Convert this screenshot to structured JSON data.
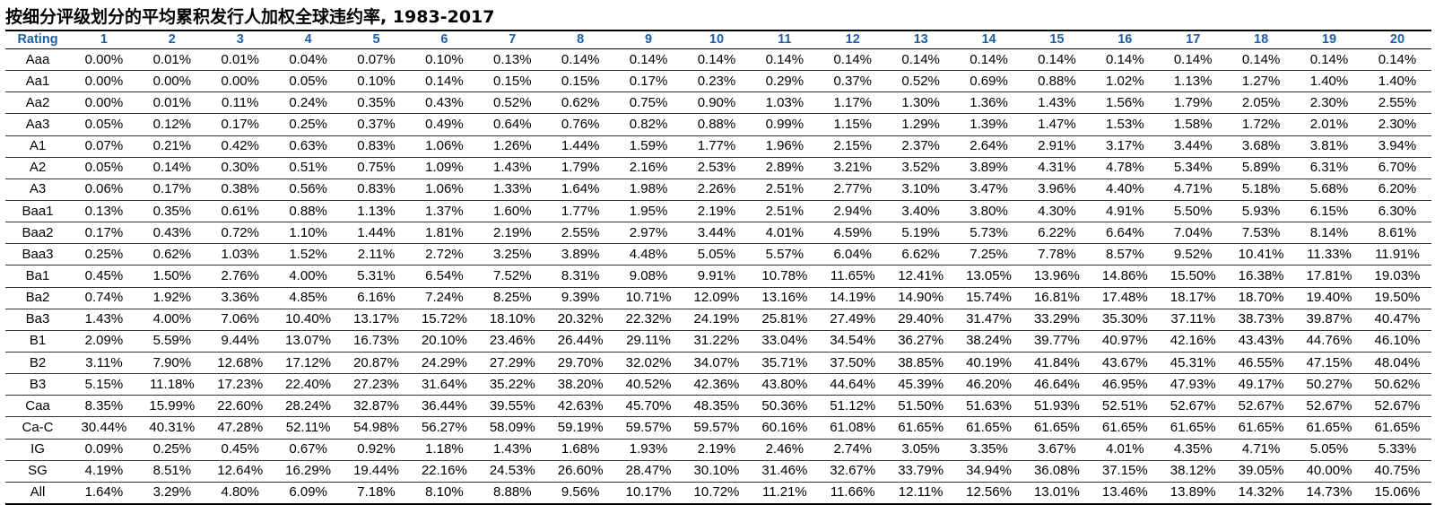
{
  "chart_data": {
    "type": "table",
    "title": "按细分评级划分的平均累积发行人加权全球违约率, 1983-2017",
    "columns": [
      "Rating",
      "1",
      "2",
      "3",
      "4",
      "5",
      "6",
      "7",
      "8",
      "9",
      "10",
      "11",
      "12",
      "13",
      "14",
      "15",
      "16",
      "17",
      "18",
      "19",
      "20"
    ],
    "rows": [
      {
        "rating": "Aaa",
        "values": [
          "0.00%",
          "0.01%",
          "0.01%",
          "0.04%",
          "0.07%",
          "0.10%",
          "0.13%",
          "0.14%",
          "0.14%",
          "0.14%",
          "0.14%",
          "0.14%",
          "0.14%",
          "0.14%",
          "0.14%",
          "0.14%",
          "0.14%",
          "0.14%",
          "0.14%",
          "0.14%"
        ]
      },
      {
        "rating": "Aa1",
        "values": [
          "0.00%",
          "0.00%",
          "0.00%",
          "0.05%",
          "0.10%",
          "0.14%",
          "0.15%",
          "0.15%",
          "0.17%",
          "0.23%",
          "0.29%",
          "0.37%",
          "0.52%",
          "0.69%",
          "0.88%",
          "1.02%",
          "1.13%",
          "1.27%",
          "1.40%",
          "1.40%"
        ]
      },
      {
        "rating": "Aa2",
        "values": [
          "0.00%",
          "0.01%",
          "0.11%",
          "0.24%",
          "0.35%",
          "0.43%",
          "0.52%",
          "0.62%",
          "0.75%",
          "0.90%",
          "1.03%",
          "1.17%",
          "1.30%",
          "1.36%",
          "1.43%",
          "1.56%",
          "1.79%",
          "2.05%",
          "2.30%",
          "2.55%"
        ]
      },
      {
        "rating": "Aa3",
        "values": [
          "0.05%",
          "0.12%",
          "0.17%",
          "0.25%",
          "0.37%",
          "0.49%",
          "0.64%",
          "0.76%",
          "0.82%",
          "0.88%",
          "0.99%",
          "1.15%",
          "1.29%",
          "1.39%",
          "1.47%",
          "1.53%",
          "1.58%",
          "1.72%",
          "2.01%",
          "2.30%"
        ]
      },
      {
        "rating": "A1",
        "values": [
          "0.07%",
          "0.21%",
          "0.42%",
          "0.63%",
          "0.83%",
          "1.06%",
          "1.26%",
          "1.44%",
          "1.59%",
          "1.77%",
          "1.96%",
          "2.15%",
          "2.37%",
          "2.64%",
          "2.91%",
          "3.17%",
          "3.44%",
          "3.68%",
          "3.81%",
          "3.94%"
        ]
      },
      {
        "rating": "A2",
        "values": [
          "0.05%",
          "0.14%",
          "0.30%",
          "0.51%",
          "0.75%",
          "1.09%",
          "1.43%",
          "1.79%",
          "2.16%",
          "2.53%",
          "2.89%",
          "3.21%",
          "3.52%",
          "3.89%",
          "4.31%",
          "4.78%",
          "5.34%",
          "5.89%",
          "6.31%",
          "6.70%"
        ]
      },
      {
        "rating": "A3",
        "values": [
          "0.06%",
          "0.17%",
          "0.38%",
          "0.56%",
          "0.83%",
          "1.06%",
          "1.33%",
          "1.64%",
          "1.98%",
          "2.26%",
          "2.51%",
          "2.77%",
          "3.10%",
          "3.47%",
          "3.96%",
          "4.40%",
          "4.71%",
          "5.18%",
          "5.68%",
          "6.20%"
        ]
      },
      {
        "rating": "Baa1",
        "values": [
          "0.13%",
          "0.35%",
          "0.61%",
          "0.88%",
          "1.13%",
          "1.37%",
          "1.60%",
          "1.77%",
          "1.95%",
          "2.19%",
          "2.51%",
          "2.94%",
          "3.40%",
          "3.80%",
          "4.30%",
          "4.91%",
          "5.50%",
          "5.93%",
          "6.15%",
          "6.30%"
        ]
      },
      {
        "rating": "Baa2",
        "values": [
          "0.17%",
          "0.43%",
          "0.72%",
          "1.10%",
          "1.44%",
          "1.81%",
          "2.19%",
          "2.55%",
          "2.97%",
          "3.44%",
          "4.01%",
          "4.59%",
          "5.19%",
          "5.73%",
          "6.22%",
          "6.64%",
          "7.04%",
          "7.53%",
          "8.14%",
          "8.61%"
        ]
      },
      {
        "rating": "Baa3",
        "values": [
          "0.25%",
          "0.62%",
          "1.03%",
          "1.52%",
          "2.11%",
          "2.72%",
          "3.25%",
          "3.89%",
          "4.48%",
          "5.05%",
          "5.57%",
          "6.04%",
          "6.62%",
          "7.25%",
          "7.78%",
          "8.57%",
          "9.52%",
          "10.41%",
          "11.33%",
          "11.91%"
        ]
      },
      {
        "rating": "Ba1",
        "values": [
          "0.45%",
          "1.50%",
          "2.76%",
          "4.00%",
          "5.31%",
          "6.54%",
          "7.52%",
          "8.31%",
          "9.08%",
          "9.91%",
          "10.78%",
          "11.65%",
          "12.41%",
          "13.05%",
          "13.96%",
          "14.86%",
          "15.50%",
          "16.38%",
          "17.81%",
          "19.03%"
        ]
      },
      {
        "rating": "Ba2",
        "values": [
          "0.74%",
          "1.92%",
          "3.36%",
          "4.85%",
          "6.16%",
          "7.24%",
          "8.25%",
          "9.39%",
          "10.71%",
          "12.09%",
          "13.16%",
          "14.19%",
          "14.90%",
          "15.74%",
          "16.81%",
          "17.48%",
          "18.17%",
          "18.70%",
          "19.40%",
          "19.50%"
        ]
      },
      {
        "rating": "Ba3",
        "values": [
          "1.43%",
          "4.00%",
          "7.06%",
          "10.40%",
          "13.17%",
          "15.72%",
          "18.10%",
          "20.32%",
          "22.32%",
          "24.19%",
          "25.81%",
          "27.49%",
          "29.40%",
          "31.47%",
          "33.29%",
          "35.30%",
          "37.11%",
          "38.73%",
          "39.87%",
          "40.47%"
        ]
      },
      {
        "rating": "B1",
        "values": [
          "2.09%",
          "5.59%",
          "9.44%",
          "13.07%",
          "16.73%",
          "20.10%",
          "23.46%",
          "26.44%",
          "29.11%",
          "31.22%",
          "33.04%",
          "34.54%",
          "36.27%",
          "38.24%",
          "39.77%",
          "40.97%",
          "42.16%",
          "43.43%",
          "44.76%",
          "46.10%"
        ]
      },
      {
        "rating": "B2",
        "values": [
          "3.11%",
          "7.90%",
          "12.68%",
          "17.12%",
          "20.87%",
          "24.29%",
          "27.29%",
          "29.70%",
          "32.02%",
          "34.07%",
          "35.71%",
          "37.50%",
          "38.85%",
          "40.19%",
          "41.84%",
          "43.67%",
          "45.31%",
          "46.55%",
          "47.15%",
          "48.04%"
        ]
      },
      {
        "rating": "B3",
        "values": [
          "5.15%",
          "11.18%",
          "17.23%",
          "22.40%",
          "27.23%",
          "31.64%",
          "35.22%",
          "38.20%",
          "40.52%",
          "42.36%",
          "43.80%",
          "44.64%",
          "45.39%",
          "46.20%",
          "46.64%",
          "46.95%",
          "47.93%",
          "49.17%",
          "50.27%",
          "50.62%"
        ]
      },
      {
        "rating": "Caa",
        "values": [
          "8.35%",
          "15.99%",
          "22.60%",
          "28.24%",
          "32.87%",
          "36.44%",
          "39.55%",
          "42.63%",
          "45.70%",
          "48.35%",
          "50.36%",
          "51.12%",
          "51.50%",
          "51.63%",
          "51.93%",
          "52.51%",
          "52.67%",
          "52.67%",
          "52.67%",
          "52.67%"
        ]
      },
      {
        "rating": "Ca-C",
        "values": [
          "30.44%",
          "40.31%",
          "47.28%",
          "52.11%",
          "54.98%",
          "56.27%",
          "58.09%",
          "59.19%",
          "59.57%",
          "59.57%",
          "60.16%",
          "61.08%",
          "61.65%",
          "61.65%",
          "61.65%",
          "61.65%",
          "61.65%",
          "61.65%",
          "61.65%",
          "61.65%"
        ]
      },
      {
        "rating": "IG",
        "values": [
          "0.09%",
          "0.25%",
          "0.45%",
          "0.67%",
          "0.92%",
          "1.18%",
          "1.43%",
          "1.68%",
          "1.93%",
          "2.19%",
          "2.46%",
          "2.74%",
          "3.05%",
          "3.35%",
          "3.67%",
          "4.01%",
          "4.35%",
          "4.71%",
          "5.05%",
          "5.33%"
        ]
      },
      {
        "rating": "SG",
        "values": [
          "4.19%",
          "8.51%",
          "12.64%",
          "16.29%",
          "19.44%",
          "22.16%",
          "24.53%",
          "26.60%",
          "28.47%",
          "30.10%",
          "31.46%",
          "32.67%",
          "33.79%",
          "34.94%",
          "36.08%",
          "37.15%",
          "38.12%",
          "39.05%",
          "40.00%",
          "40.75%"
        ]
      },
      {
        "rating": "All",
        "values": [
          "1.64%",
          "3.29%",
          "4.80%",
          "6.09%",
          "7.18%",
          "8.10%",
          "8.88%",
          "9.56%",
          "10.17%",
          "10.72%",
          "11.21%",
          "11.66%",
          "12.11%",
          "12.56%",
          "13.01%",
          "13.46%",
          "13.89%",
          "14.32%",
          "14.73%",
          "15.06%"
        ]
      }
    ]
  },
  "colors": {
    "header_text": "#1f5fa5",
    "rule": "#000000"
  }
}
